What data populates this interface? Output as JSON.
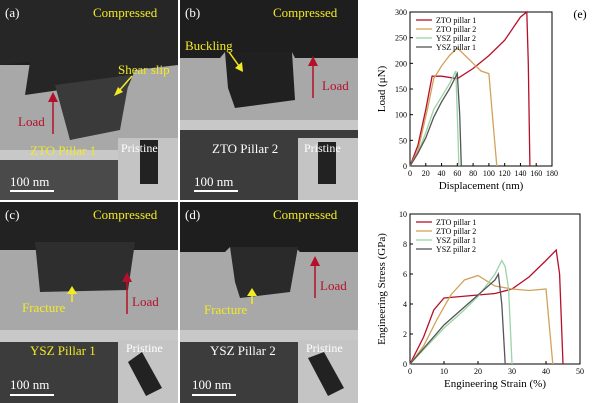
{
  "panels": [
    {
      "letter": "(a)",
      "state": "Compressed",
      "sample": "ZTO Pillar 1",
      "inset": "Pristine",
      "scale": "100 nm",
      "note": "Shear slip",
      "load": "Load"
    },
    {
      "letter": "(b)",
      "state": "Compressed",
      "sample": "ZTO Pillar 2",
      "inset": "Pristine",
      "scale": "100 nm",
      "note": "Buckling",
      "load": "Load"
    },
    {
      "letter": "(c)",
      "state": "Compressed",
      "sample": "YSZ Pillar 1",
      "inset": "Pristine",
      "scale": "100 nm",
      "note": "Fracture",
      "load": "Load"
    },
    {
      "letter": "(d)",
      "state": "Compressed",
      "sample": "YSZ Pillar 2",
      "inset": "Pristine",
      "scale": "100 nm",
      "note": "Fracture",
      "load": "Load"
    }
  ],
  "chart_data": [
    {
      "panel_label": "(e)",
      "type": "line",
      "xlabel": "Displacement (nm)",
      "ylabel": "Load (μN)",
      "xlim": [
        0,
        180
      ],
      "ylim": [
        0,
        300
      ],
      "xticks": [
        0,
        20,
        40,
        60,
        80,
        100,
        120,
        140,
        160,
        180
      ],
      "yticks": [
        0,
        50,
        100,
        150,
        200,
        250,
        300
      ],
      "legend_position": "top-left",
      "series": [
        {
          "name": "ZTO pillar 1",
          "color": "#b5102a",
          "x": [
            0,
            10,
            20,
            28,
            40,
            60,
            80,
            100,
            120,
            140,
            148,
            150,
            152
          ],
          "y": [
            0,
            40,
            110,
            175,
            175,
            170,
            190,
            215,
            245,
            290,
            300,
            200,
            0
          ]
        },
        {
          "name": "ZTO pillar 2",
          "color": "#d4a15a",
          "x": [
            0,
            10,
            22,
            30,
            40,
            50,
            60,
            70,
            80,
            90,
            100,
            105,
            110
          ],
          "y": [
            0,
            30,
            110,
            170,
            195,
            215,
            230,
            215,
            200,
            185,
            180,
            90,
            0
          ]
        },
        {
          "name": "YSZ pillar 2",
          "color": "#9bd4a8",
          "x": [
            0,
            10,
            20,
            30,
            40,
            50,
            58,
            60,
            62
          ],
          "y": [
            0,
            25,
            65,
            110,
            135,
            160,
            185,
            100,
            0
          ]
        },
        {
          "name": "YSZ pillar 1",
          "color": "#555555",
          "x": [
            0,
            10,
            20,
            30,
            40,
            50,
            60,
            63,
            65
          ],
          "y": [
            0,
            25,
            55,
            95,
            125,
            150,
            180,
            100,
            0
          ]
        }
      ]
    },
    {
      "panel_label": "(f)",
      "type": "line",
      "xlabel": "Engineering Strain (%)",
      "ylabel": "Engineering Stress (GPa)",
      "xlim": [
        0,
        50
      ],
      "ylim": [
        0,
        10
      ],
      "xticks": [
        0,
        10,
        20,
        30,
        40,
        50
      ],
      "yticks": [
        0,
        2,
        4,
        6,
        8,
        10
      ],
      "legend_position": "top-left",
      "series": [
        {
          "name": "ZTO pillar 1",
          "color": "#b5102a",
          "x": [
            0,
            4,
            7,
            10,
            15,
            20,
            25,
            30,
            35,
            40,
            43,
            44,
            45
          ],
          "y": [
            0,
            1.8,
            3.6,
            4.4,
            4.5,
            4.6,
            4.7,
            5.0,
            5.8,
            6.9,
            7.6,
            6,
            0
          ]
        },
        {
          "name": "ZTO pillar 2",
          "color": "#d4a15a",
          "x": [
            0,
            4,
            8,
            12,
            16,
            20,
            25,
            30,
            35,
            40,
            42
          ],
          "y": [
            0,
            1.2,
            3.0,
            4.6,
            5.6,
            5.9,
            5.2,
            5.0,
            4.9,
            5.0,
            0
          ]
        },
        {
          "name": "YSZ pillar 1",
          "color": "#9bd4a8",
          "x": [
            0,
            5,
            10,
            15,
            20,
            25,
            27,
            28,
            29,
            30
          ],
          "y": [
            0,
            1.2,
            2.4,
            3.4,
            4.5,
            6.0,
            6.9,
            6.5,
            5,
            0
          ]
        },
        {
          "name": "YSZ pillar 2",
          "color": "#555555",
          "x": [
            0,
            5,
            10,
            15,
            20,
            25,
            26,
            27,
            28
          ],
          "y": [
            0,
            1.3,
            2.6,
            3.6,
            4.6,
            5.6,
            6.0,
            4,
            0
          ]
        }
      ]
    }
  ]
}
